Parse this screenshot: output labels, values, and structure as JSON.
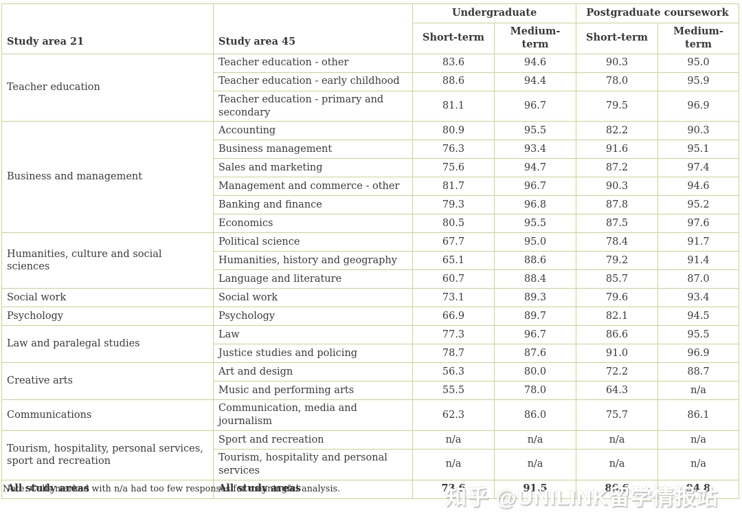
{
  "header": {
    "study_area_21": "Study area 21",
    "study_area_45": "Study area 45",
    "undergraduate": "Undergraduate",
    "postgraduate": "Postgraduate coursework",
    "subheaders": [
      "Short-term",
      "Medium-term",
      "Short-term",
      "Medium-term"
    ]
  },
  "groups": [
    {
      "area21": "Teacher education",
      "rows": [
        {
          "area45": "Teacher education - other",
          "values": [
            "83.6",
            "94.6",
            "90.3",
            "95.0"
          ]
        },
        {
          "area45": "Teacher education - early childhood",
          "values": [
            "88.6",
            "94.4",
            "78.0",
            "95.9"
          ]
        },
        {
          "area45": "Teacher education - primary and secondary",
          "values": [
            "81.1",
            "96.7",
            "79.5",
            "96.9"
          ]
        }
      ]
    },
    {
      "area21": "Business and management",
      "rows": [
        {
          "area45": "Accounting",
          "values": [
            "80.9",
            "95.5",
            "82.2",
            "90.3"
          ]
        },
        {
          "area45": "Business management",
          "values": [
            "76.3",
            "93.4",
            "91.6",
            "95.1"
          ]
        },
        {
          "area45": "Sales and marketing",
          "values": [
            "75.6",
            "94.7",
            "87.2",
            "97.4"
          ]
        },
        {
          "area45": "Management and commerce - other",
          "values": [
            "81.7",
            "96.7",
            "90.3",
            "94.6"
          ]
        },
        {
          "area45": "Banking and finance",
          "values": [
            "79.3",
            "96.8",
            "87.8",
            "95.2"
          ]
        },
        {
          "area45": "Economics",
          "values": [
            "80.5",
            "95.5",
            "87.5",
            "97.6"
          ]
        }
      ]
    },
    {
      "area21": "Humanities, culture and social sciences",
      "rows": [
        {
          "area45": "Political science",
          "values": [
            "67.7",
            "95.0",
            "78.4",
            "91.7"
          ]
        },
        {
          "area45": "Humanities, history and geography",
          "values": [
            "65.1",
            "88.6",
            "79.2",
            "91.4"
          ]
        },
        {
          "area45": "Language and literature",
          "values": [
            "60.7",
            "88.4",
            "85.7",
            "87.0"
          ]
        }
      ]
    },
    {
      "area21": "Social work",
      "rows": [
        {
          "area45": "Social work",
          "values": [
            "73.1",
            "89.3",
            "79.6",
            "93.4"
          ]
        }
      ]
    },
    {
      "area21": "Psychology",
      "rows": [
        {
          "area45": "Psychology",
          "values": [
            "66.9",
            "89.7",
            "82.1",
            "94.5"
          ]
        }
      ]
    },
    {
      "area21": "Law and paralegal studies",
      "rows": [
        {
          "area45": "Law",
          "values": [
            "77.3",
            "96.7",
            "86.6",
            "95.5"
          ]
        },
        {
          "area45": "Justice studies and policing",
          "values": [
            "78.7",
            "87.6",
            "91.0",
            "96.9"
          ]
        }
      ]
    },
    {
      "area21": "Creative arts",
      "rows": [
        {
          "area45": "Art and design",
          "values": [
            "56.3",
            "80.0",
            "72.2",
            "88.7"
          ]
        },
        {
          "area45": "Music and performing arts",
          "values": [
            "55.5",
            "78.0",
            "64.3",
            "n/a"
          ]
        }
      ]
    },
    {
      "area21": "Communications",
      "rows": [
        {
          "area45": "Communication, media and journalism",
          "values": [
            "62.3",
            "86.0",
            "75.7",
            "86.1"
          ]
        }
      ]
    },
    {
      "area21": "Tourism, hospitality, personal services, sport and recreation",
      "rows": [
        {
          "area45": "Sport and recreation",
          "values": [
            "n/a",
            "n/a",
            "n/a",
            "n/a"
          ]
        },
        {
          "area45": "Tourism, hospitality and personal services",
          "values": [
            "n/a",
            "n/a",
            "n/a",
            "n/a"
          ]
        }
      ]
    }
  ],
  "total": {
    "area21": "All study areas",
    "area45": "All study areas",
    "values": [
      "73.6",
      "91.5",
      "86.6",
      "94.8"
    ]
  },
  "note": "Note: Cells marked with n/a had too few responses for meaningful analysis.",
  "watermark": "知乎 @UNILINK留学情报站",
  "colors": {
    "border": "#ccd18f",
    "text": "#3a3a3a",
    "background": "#ffffff"
  },
  "chart_data": {
    "type": "table",
    "title": "",
    "columns": [
      "Study area 21",
      "Study area 45",
      "Undergraduate Short-term",
      "Undergraduate Medium-term",
      "Postgraduate coursework Short-term",
      "Postgraduate coursework Medium-term"
    ],
    "rows": [
      [
        "Teacher education",
        "Teacher education - other",
        83.6,
        94.6,
        90.3,
        95.0
      ],
      [
        "Teacher education",
        "Teacher education - early childhood",
        88.6,
        94.4,
        78.0,
        95.9
      ],
      [
        "Teacher education",
        "Teacher education - primary and secondary",
        81.1,
        96.7,
        79.5,
        96.9
      ],
      [
        "Business and management",
        "Accounting",
        80.9,
        95.5,
        82.2,
        90.3
      ],
      [
        "Business and management",
        "Business management",
        76.3,
        93.4,
        91.6,
        95.1
      ],
      [
        "Business and management",
        "Sales and marketing",
        75.6,
        94.7,
        87.2,
        97.4
      ],
      [
        "Business and management",
        "Management and commerce - other",
        81.7,
        96.7,
        90.3,
        94.6
      ],
      [
        "Business and management",
        "Banking and finance",
        79.3,
        96.8,
        87.8,
        95.2
      ],
      [
        "Business and management",
        "Economics",
        80.5,
        95.5,
        87.5,
        97.6
      ],
      [
        "Humanities, culture and social sciences",
        "Political science",
        67.7,
        95.0,
        78.4,
        91.7
      ],
      [
        "Humanities, culture and social sciences",
        "Humanities, history and geography",
        65.1,
        88.6,
        79.2,
        91.4
      ],
      [
        "Humanities, culture and social sciences",
        "Language and literature",
        60.7,
        88.4,
        85.7,
        87.0
      ],
      [
        "Social work",
        "Social work",
        73.1,
        89.3,
        79.6,
        93.4
      ],
      [
        "Psychology",
        "Psychology",
        66.9,
        89.7,
        82.1,
        94.5
      ],
      [
        "Law and paralegal studies",
        "Law",
        77.3,
        96.7,
        86.6,
        95.5
      ],
      [
        "Law and paralegal studies",
        "Justice studies and policing",
        78.7,
        87.6,
        91.0,
        96.9
      ],
      [
        "Creative arts",
        "Art and design",
        56.3,
        80.0,
        72.2,
        88.7
      ],
      [
        "Creative arts",
        "Music and performing arts",
        55.5,
        78.0,
        64.3,
        "n/a"
      ],
      [
        "Communications",
        "Communication, media and journalism",
        62.3,
        86.0,
        75.7,
        86.1
      ],
      [
        "Tourism, hospitality, personal services, sport and recreation",
        "Sport and recreation",
        "n/a",
        "n/a",
        "n/a",
        "n/a"
      ],
      [
        "Tourism, hospitality, personal services, sport and recreation",
        "Tourism, hospitality and personal services",
        "n/a",
        "n/a",
        "n/a",
        "n/a"
      ],
      [
        "All study areas",
        "All study areas",
        73.6,
        91.5,
        86.6,
        94.8
      ]
    ]
  }
}
